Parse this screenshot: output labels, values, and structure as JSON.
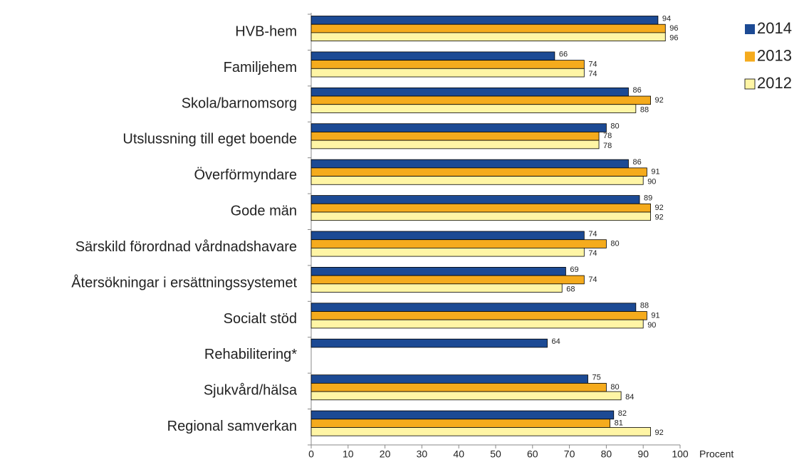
{
  "chart_data": {
    "type": "bar",
    "orientation": "horizontal",
    "x_label": "Procent",
    "categories": [
      "HVB-hem",
      "Familjehem",
      "Skola/barnomsorg",
      "Utslussning till eget boende",
      "Överförmyndare",
      "Gode män",
      "Särskild förordnad vårdnadshavare",
      "Återsökningar i ersättningssystemet",
      "Socialt stöd",
      "Rehabilitering*",
      "Sjukvård/hälsa",
      "Regional samverkan"
    ],
    "series": [
      {
        "name": "2014",
        "color": "#1c4a94",
        "values": [
          94,
          66,
          86,
          80,
          86,
          89,
          74,
          69,
          88,
          64,
          75,
          82
        ]
      },
      {
        "name": "2013",
        "color": "#f5ab1d",
        "values": [
          96,
          74,
          92,
          78,
          91,
          92,
          80,
          74,
          91,
          null,
          80,
          81
        ]
      },
      {
        "name": "2012",
        "color": "#fff5a5",
        "values": [
          96,
          74,
          88,
          78,
          90,
          92,
          74,
          68,
          90,
          null,
          84,
          92
        ]
      }
    ],
    "xlim": [
      0,
      100
    ],
    "xticks": [
      0,
      10,
      20,
      30,
      40,
      50,
      60,
      70,
      80,
      90,
      100
    ],
    "legend": "right"
  }
}
